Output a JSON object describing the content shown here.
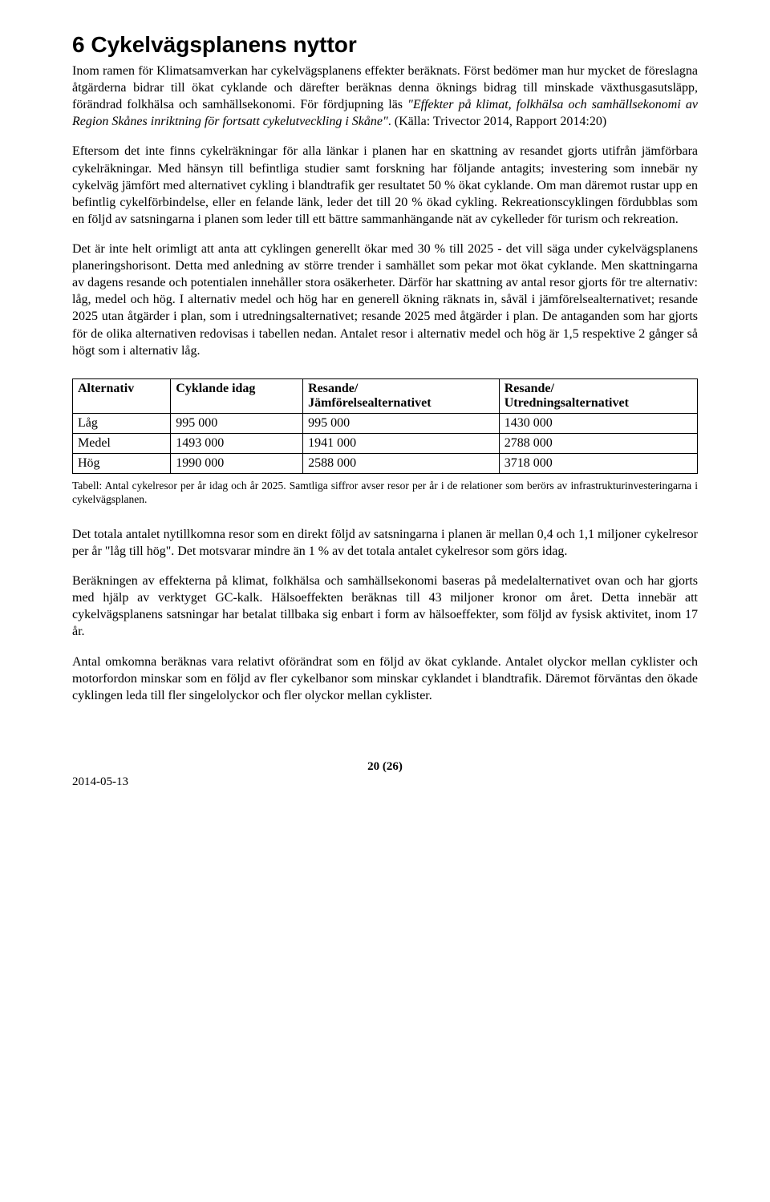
{
  "heading": "6  Cykelvägsplanens nyttor",
  "para1_a": "Inom ramen för Klimatsamverkan har cykelvägsplanens effekter beräknats. Först bedömer man hur mycket de föreslagna åtgärderna bidrar till ökat cyklande och därefter beräknas denna öknings bidrag till minskade växthusgasutsläpp, förändrad folkhälsa och samhällsekonomi. För fördjupning läs ",
  "para1_quote": "\"Effekter på klimat, folkhälsa och samhällsekonomi av Region Skånes inriktning för fortsatt cykelutveckling i Skåne\"",
  "para1_b": ". ",
  "para1_source": "(Källa: Trivector 2014, Rapport 2014:20)",
  "para2": "Eftersom det inte finns cykelräkningar för alla länkar i planen har en skattning av resandet gjorts utifrån jämförbara cykelräkningar. Med hänsyn till befintliga studier samt forskning har följande antagits; investering som innebär ny cykelväg jämfört med alternativet cykling i blandtrafik ger resultatet 50 % ökat cyklande. Om man däremot rustar upp en befintlig cykelförbindelse, eller en felande länk, leder det till 20 % ökad cykling. Rekreationscyklingen fördubblas som en följd av satsningarna i planen som leder till ett bättre sammanhängande nät av cykelleder för turism och rekreation.",
  "para3": "Det är inte helt orimligt att anta att cyklingen generellt ökar med 30 % till 2025 - det vill säga under cykelvägsplanens planeringshorisont. Detta med anledning av större trender i samhället som pekar mot ökat cyklande. Men skattningarna av dagens resande och potentialen innehåller stora osäkerheter. Därför har skattning av antal resor gjorts för tre alternativ: låg, medel och hög. I alternativ medel och hög har en generell ökning räknats in, såväl i jämförelsealternativet; resande 2025 utan åtgärder i plan, som i utredningsalternativet; resande 2025 med åtgärder i plan. De antaganden som har gjorts för de olika alternativen redovisas i tabellen nedan. Antalet resor i alternativ medel och hög är 1,5 respektive 2 gånger så högt som i alternativ låg.",
  "table": {
    "columns": [
      "Alternativ",
      "Cyklande idag",
      "Resande/\nJämförelsealternativet",
      "Resande/\nUtredningsalternativet"
    ],
    "rows": [
      [
        "Låg",
        "995 000",
        "995 000",
        "1430 000"
      ],
      [
        "Medel",
        "1493 000",
        "1941 000",
        "2788 000"
      ],
      [
        "Hög",
        "1990 000",
        "2588 000",
        "3718 000"
      ]
    ]
  },
  "caption": "Tabell: Antal cykelresor per år idag och år 2025. Samtliga siffror avser resor per år i de relationer som berörs av infrastrukturinvesteringarna i cykelvägsplanen.",
  "para4": "Det totala antalet nytillkomna resor som en direkt följd av satsningarna i planen är mellan 0,4 och 1,1 miljoner cykelresor per år \"låg till hög\". Det motsvarar mindre än 1 % av det totala antalet cykelresor som görs idag.",
  "para5": "Beräkningen av effekterna på klimat, folkhälsa och samhällsekonomi baseras på medelalternativet ovan och har gjorts med hjälp av verktyget GC-kalk. Hälsoeffekten beräknas till 43 miljoner kronor om året. Detta innebär att cykelvägsplanens satsningar har betalat tillbaka sig enbart i form av hälsoeffekter, som följd av fysisk aktivitet, inom 17 år.",
  "para6": "Antal omkomna beräknas vara relativt oförändrat som en följd av ökat cyklande. Antalet olyckor mellan cyklister och motorfordon minskar som en följd av fler cykelbanor som minskar cyklandet i blandtrafik. Däremot förväntas den ökade cyklingen leda till fler singelolyckor och fler olyckor mellan cyklister.",
  "footer_page": "20 (26)",
  "footer_date": "2014-05-13"
}
